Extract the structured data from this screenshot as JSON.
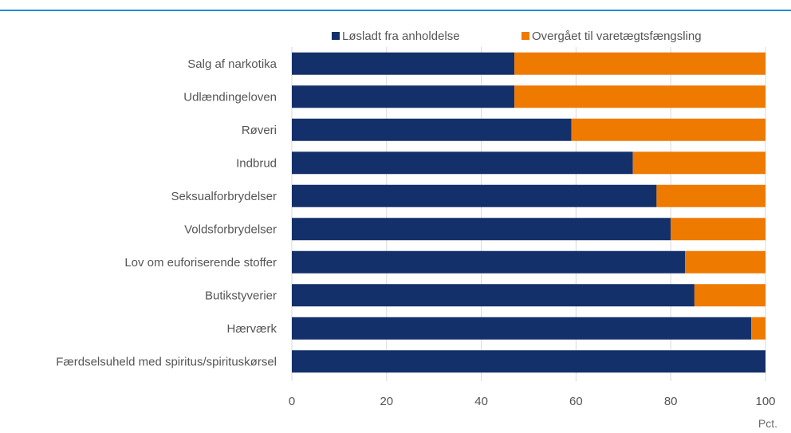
{
  "chart_data": {
    "type": "bar",
    "orientation": "horizontal",
    "stacked": true,
    "title": "",
    "xlabel": "",
    "ylabel": "",
    "unit_label": "Pct.",
    "xlim": [
      0,
      100
    ],
    "xticks": [
      0,
      20,
      40,
      60,
      80,
      100
    ],
    "grid": "vertical",
    "legend_position": "top",
    "categories": [
      "Salg af narkotika",
      "Udlændingeloven",
      "Røveri",
      "Indbrud",
      "Seksualforbrydelser",
      "Voldsforbrydelser",
      "Lov om euforiserende stoffer",
      "Butikstyverier",
      "Hærværk",
      "Færdselsuheld med spiritus/spirituskørsel"
    ],
    "series": [
      {
        "name": "Løsladt fra anholdelse",
        "color": "#14306b",
        "values": [
          47,
          47,
          59,
          72,
          77,
          80,
          83,
          85,
          97,
          100
        ]
      },
      {
        "name": "Overgået til varetægtsfængsling",
        "color": "#ef7a00",
        "values": [
          53,
          53,
          41,
          28,
          23,
          20,
          17,
          15,
          3,
          0
        ]
      }
    ]
  }
}
